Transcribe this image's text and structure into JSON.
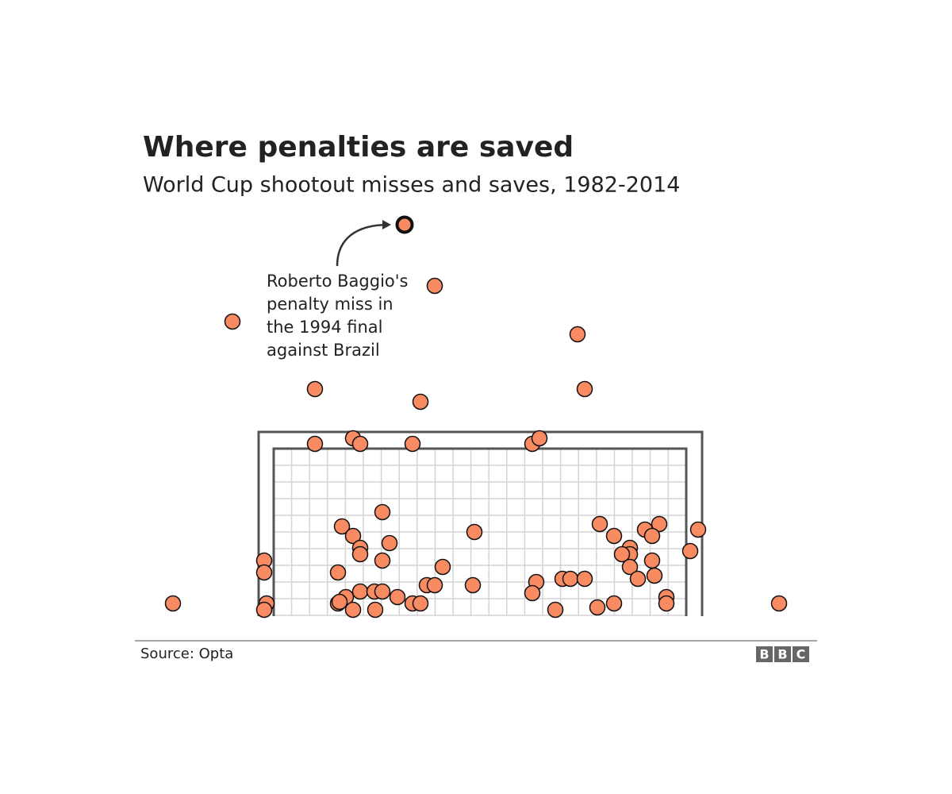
{
  "chart_data": {
    "type": "scatter",
    "title": "Where penalties are saved",
    "subtitle": "World Cup shootout misses and saves, 1982-2014",
    "annotation": {
      "text": [
        "Roberto Baggio's",
        "penalty miss in",
        "the 1994 final",
        "against Brazil"
      ],
      "x": 510,
      "y": 492
    },
    "source": "Source: Opta",
    "logo": [
      "B",
      "B",
      "C"
    ],
    "color": "#f98b63",
    "xlim": [
      170,
      1030
    ],
    "ylim": [
      0,
      520
    ],
    "x": [
      548,
      293,
      728,
      397,
      737,
      530,
      397,
      445,
      454,
      520,
      671,
      680,
      482,
      431,
      445,
      598,
      756,
      831,
      813,
      880,
      774,
      822,
      491,
      454,
      454,
      794,
      794,
      784,
      870,
      333,
      482,
      558,
      794,
      822,
      333,
      426,
      804,
      825,
      709,
      719,
      737,
      676,
      538,
      548,
      596,
      454,
      472,
      482,
      436,
      501,
      671,
      840,
      218,
      336,
      426,
      428,
      520,
      530,
      774,
      840,
      982,
      333,
      445,
      473,
      700,
      753
    ],
    "y": [
      415,
      370,
      354,
      285,
      285,
      269,
      216,
      223,
      216,
      216,
      216,
      223,
      130,
      112,
      100,
      105,
      115,
      115,
      108,
      108,
      100,
      100,
      91,
      85,
      77,
      85,
      77,
      77,
      81,
      69,
      69,
      61,
      61,
      69,
      54,
      54,
      46,
      50,
      46,
      46,
      46,
      42,
      38,
      38,
      38,
      30,
      30,
      30,
      23,
      23,
      28,
      23,
      15,
      15,
      15,
      17,
      15,
      15,
      15,
      15,
      15,
      7,
      7,
      7,
      7,
      10
    ]
  }
}
